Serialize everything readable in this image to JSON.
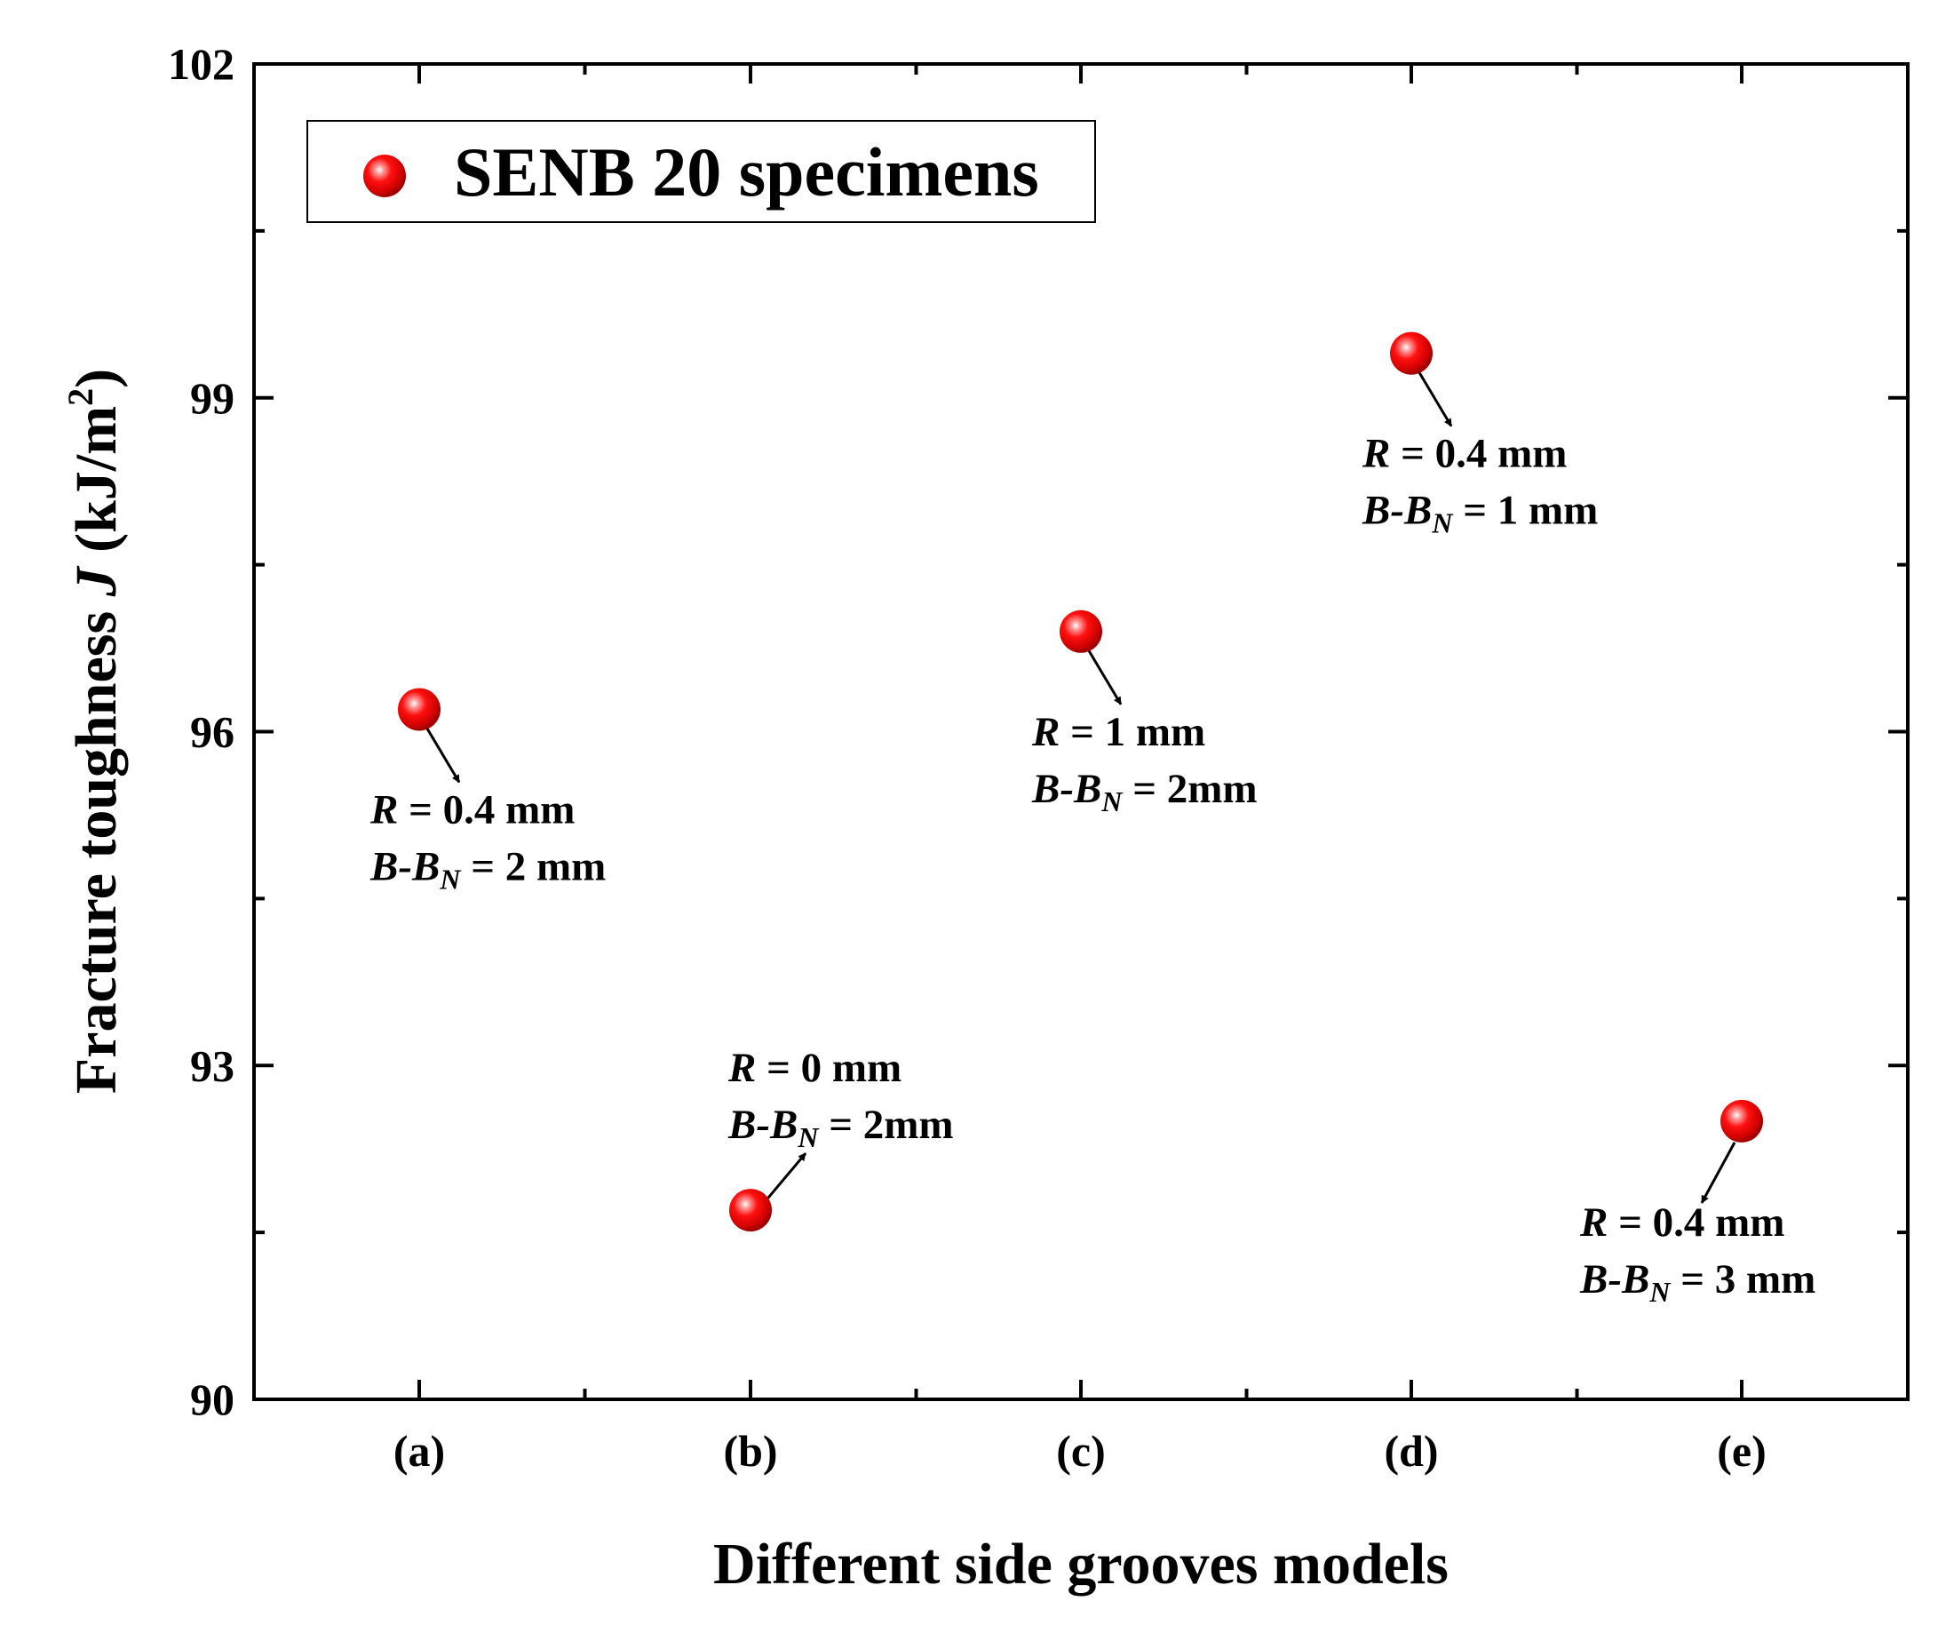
{
  "chart_data": {
    "type": "scatter",
    "title": "",
    "xlabel": "Different side grooves models",
    "ylabel": {
      "prefix": "Fracture toughness ",
      "symbol": "J",
      "units_open": " (kJ/m",
      "units_sup": "2",
      "units_close": ")"
    },
    "categories": [
      "(a)",
      "(b)",
      "(c)",
      "(d)",
      "(e)"
    ],
    "ylim": [
      90,
      102
    ],
    "yticks": [
      90,
      93,
      96,
      99,
      102
    ],
    "series": [
      {
        "name": "SENB 20 specimens",
        "values": [
          96.2,
          91.7,
          96.9,
          99.4,
          92.5
        ],
        "color": "#ff0000"
      }
    ],
    "legend": {
      "label": "SENB 20 specimens",
      "position": "top-left"
    },
    "annotations": [
      {
        "category": "(a)",
        "line1": {
          "sym": "R",
          "text": " = 0.4 mm"
        },
        "line2": {
          "sym1": "B",
          "dash": "-",
          "sym2": "B",
          "sub": "N",
          "text": " = 2 mm"
        },
        "placement": "below"
      },
      {
        "category": "(b)",
        "line1": {
          "sym": "R",
          "text": " = 0 mm"
        },
        "line2": {
          "sym1": "B",
          "dash": "-",
          "sym2": "B",
          "sub": "N",
          "text": " = 2mm"
        },
        "placement": "above"
      },
      {
        "category": "(c)",
        "line1": {
          "sym": "R",
          "text": " = 1 mm"
        },
        "line2": {
          "sym1": "B",
          "dash": "-",
          "sym2": "B",
          "sub": "N",
          "text": " = 2mm"
        },
        "placement": "below"
      },
      {
        "category": "(d)",
        "line1": {
          "sym": "R",
          "text": " = 0.4 mm"
        },
        "line2": {
          "sym1": "B",
          "dash": "-",
          "sym2": "B",
          "sub": "N",
          "text": " = 1 mm"
        },
        "placement": "below"
      },
      {
        "category": "(e)",
        "line1": {
          "sym": "R",
          "text": " = 0.4 mm"
        },
        "line2": {
          "sym1": "B",
          "dash": "-",
          "sym2": "B",
          "sub": "N",
          "text": " = 3 mm"
        },
        "placement": "below-left"
      }
    ]
  }
}
